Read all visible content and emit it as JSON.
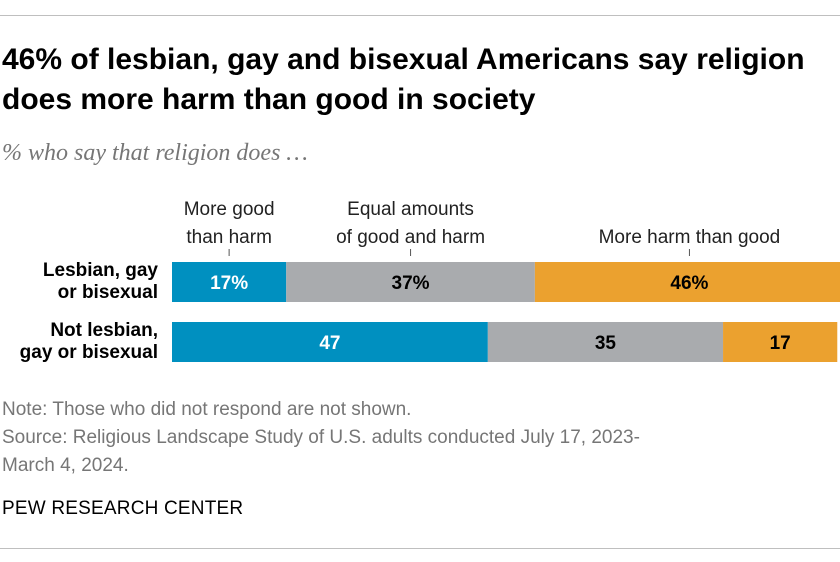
{
  "title": "46% of lesbian, gay and bisexual Americans say religion does more harm than good in society",
  "subtitle": "% who say that religion does …",
  "chart_data": {
    "type": "bar",
    "orientation": "horizontal",
    "stacked": true,
    "categories": [
      "Lesbian, gay or bisexual",
      "Not lesbian, gay or bisexual"
    ],
    "category_labels": [
      [
        "Lesbian, gay",
        "or bisexual"
      ],
      [
        "Not lesbian,",
        "gay or bisexual"
      ]
    ],
    "series": [
      {
        "name": "More good than harm",
        "legend_lines": [
          "More good",
          "than harm"
        ],
        "color": "#0090c0",
        "values": [
          17,
          47
        ],
        "label_color": "#ffffff"
      },
      {
        "name": "Equal amounts of good and harm",
        "legend_lines": [
          "Equal amounts",
          "of good and harm"
        ],
        "color": "#a9abae",
        "values": [
          37,
          35
        ],
        "label_color": "#000000"
      },
      {
        "name": "More harm than good",
        "legend_lines": [
          "More harm than good"
        ],
        "color": "#eba12f",
        "values": [
          46,
          17
        ],
        "label_color": "#000000"
      }
    ],
    "value_labels": [
      [
        "17%",
        "37%",
        "46%"
      ],
      [
        "47",
        "35",
        "17"
      ]
    ],
    "xlim": [
      0,
      100
    ]
  },
  "note": "Note: Those who did not respond are not shown.",
  "source_lines": [
    "Source: Religious Landscape Study of U.S. adults conducted July 17, 2023-",
    "March 4, 2024."
  ],
  "brand": "PEW RESEARCH CENTER"
}
